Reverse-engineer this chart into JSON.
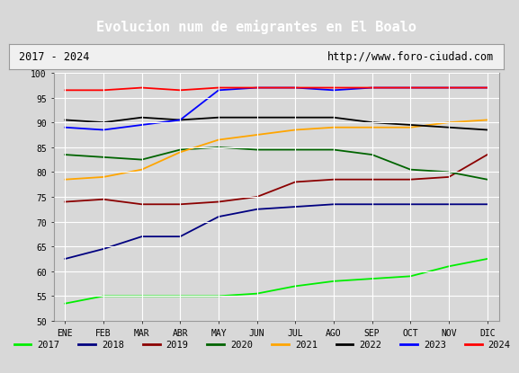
{
  "title": "Evolucion num de emigrantes en El Boalo",
  "subtitle_left": "2017 - 2024",
  "subtitle_right": "http://www.foro-ciudad.com",
  "ylim": [
    50,
    100
  ],
  "yticks": [
    50,
    55,
    60,
    65,
    70,
    75,
    80,
    85,
    90,
    95,
    100
  ],
  "months": [
    "ENE",
    "FEB",
    "MAR",
    "ABR",
    "MAY",
    "JUN",
    "JUL",
    "AGO",
    "SEP",
    "OCT",
    "NOV",
    "DIC"
  ],
  "series": [
    {
      "year": "2017",
      "color": "#00ee00",
      "values": [
        53.5,
        55.0,
        55.0,
        55.0,
        55.0,
        55.5,
        57.0,
        58.0,
        58.5,
        59.0,
        61.0,
        62.5
      ]
    },
    {
      "year": "2018",
      "color": "#000080",
      "values": [
        62.5,
        64.5,
        67.0,
        67.0,
        71.0,
        72.5,
        73.0,
        73.5,
        73.5,
        73.5,
        73.5,
        73.5
      ]
    },
    {
      "year": "2019",
      "color": "#8B0000",
      "values": [
        74.0,
        74.5,
        73.5,
        73.5,
        74.0,
        75.0,
        78.0,
        78.5,
        78.5,
        78.5,
        79.0,
        83.5
      ]
    },
    {
      "year": "2020",
      "color": "#006400",
      "values": [
        83.5,
        83.0,
        82.5,
        84.5,
        85.0,
        84.5,
        84.5,
        84.5,
        83.5,
        80.5,
        80.0,
        78.5
      ]
    },
    {
      "year": "2021",
      "color": "#FFA500",
      "values": [
        78.5,
        79.0,
        80.5,
        84.0,
        86.5,
        87.5,
        88.5,
        89.0,
        89.0,
        89.0,
        90.0,
        90.5
      ]
    },
    {
      "year": "2022",
      "color": "#000000",
      "values": [
        90.5,
        90.0,
        91.0,
        90.5,
        91.0,
        91.0,
        91.0,
        91.0,
        90.0,
        89.5,
        89.0,
        88.5
      ]
    },
    {
      "year": "2023",
      "color": "#0000FF",
      "values": [
        89.0,
        88.5,
        89.5,
        90.5,
        96.5,
        97.0,
        97.0,
        96.5,
        97.0,
        97.0,
        97.0,
        97.0
      ]
    },
    {
      "year": "2024",
      "color": "#FF0000",
      "values": [
        96.5,
        96.5,
        97.0,
        96.5,
        97.0,
        97.0,
        97.0,
        97.0,
        97.0,
        97.0,
        97.0,
        97.0
      ]
    }
  ],
  "title_bg_color": "#5b9bd5",
  "title_color": "#ffffff",
  "title_fontsize": 11,
  "fig_bg_color": "#d8d8d8",
  "plot_bg_color": "#d8d8d8",
  "subtitle_bg_color": "#f0f0f0",
  "legend_bg_color": "#ffffff",
  "grid_color": "#ffffff",
  "grid_linewidth": 0.8
}
